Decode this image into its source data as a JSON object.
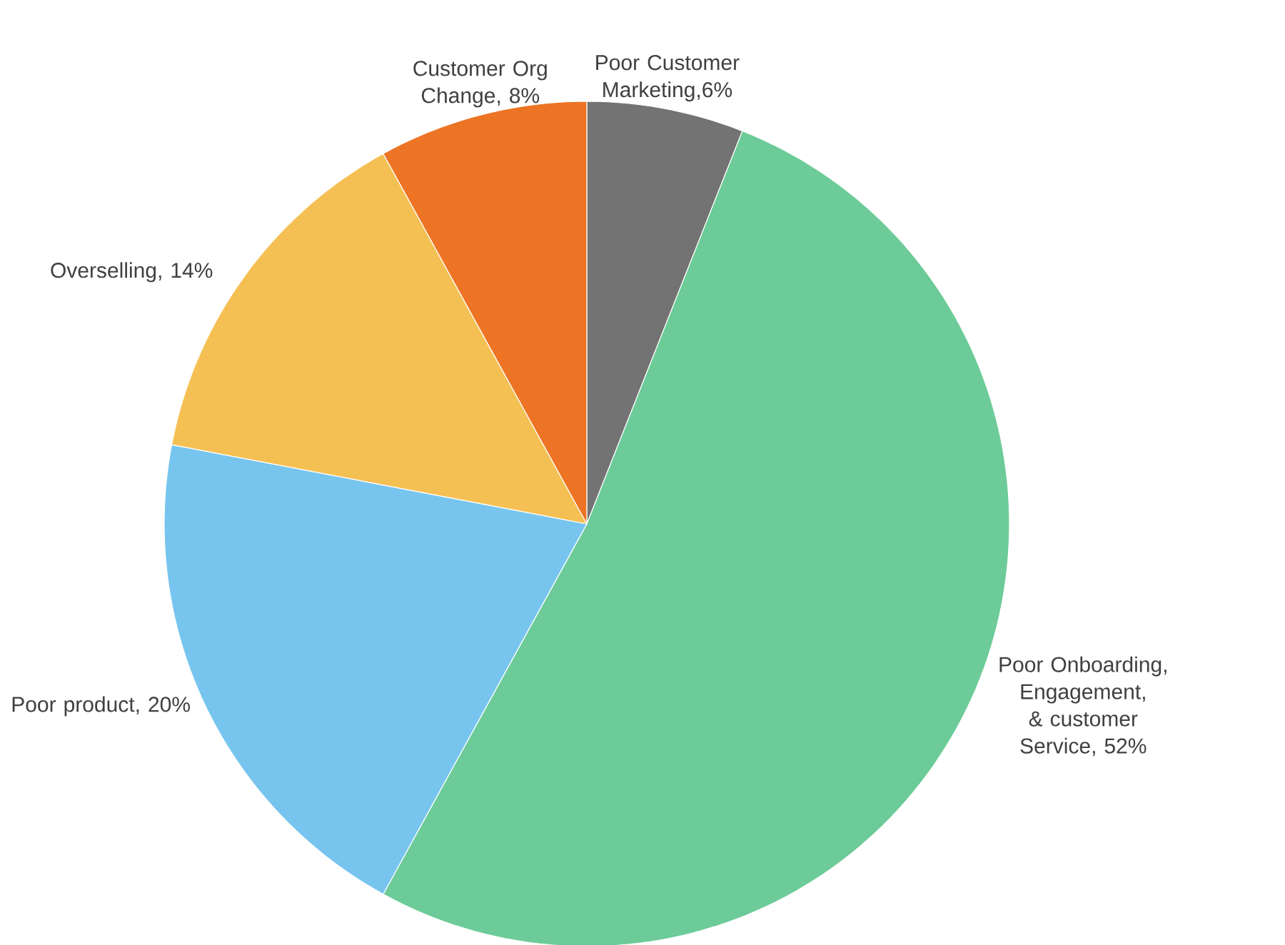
{
  "chart_data": {
    "type": "pie",
    "categories": [
      "Poor Customer Marketing",
      "Poor Onboarding, Engagement, & customer Service",
      "Poor product",
      "Overselling",
      "Customer Org Change"
    ],
    "values": [
      6,
      52,
      20,
      14,
      8
    ],
    "value_labels": [
      ",6%",
      ", 52%",
      ", 20%",
      ", 14%",
      ", 8%"
    ],
    "colors": [
      "#737373",
      "#6ccb98",
      "#77c5ee",
      "#f5c053",
      "#ec7424"
    ]
  }
}
